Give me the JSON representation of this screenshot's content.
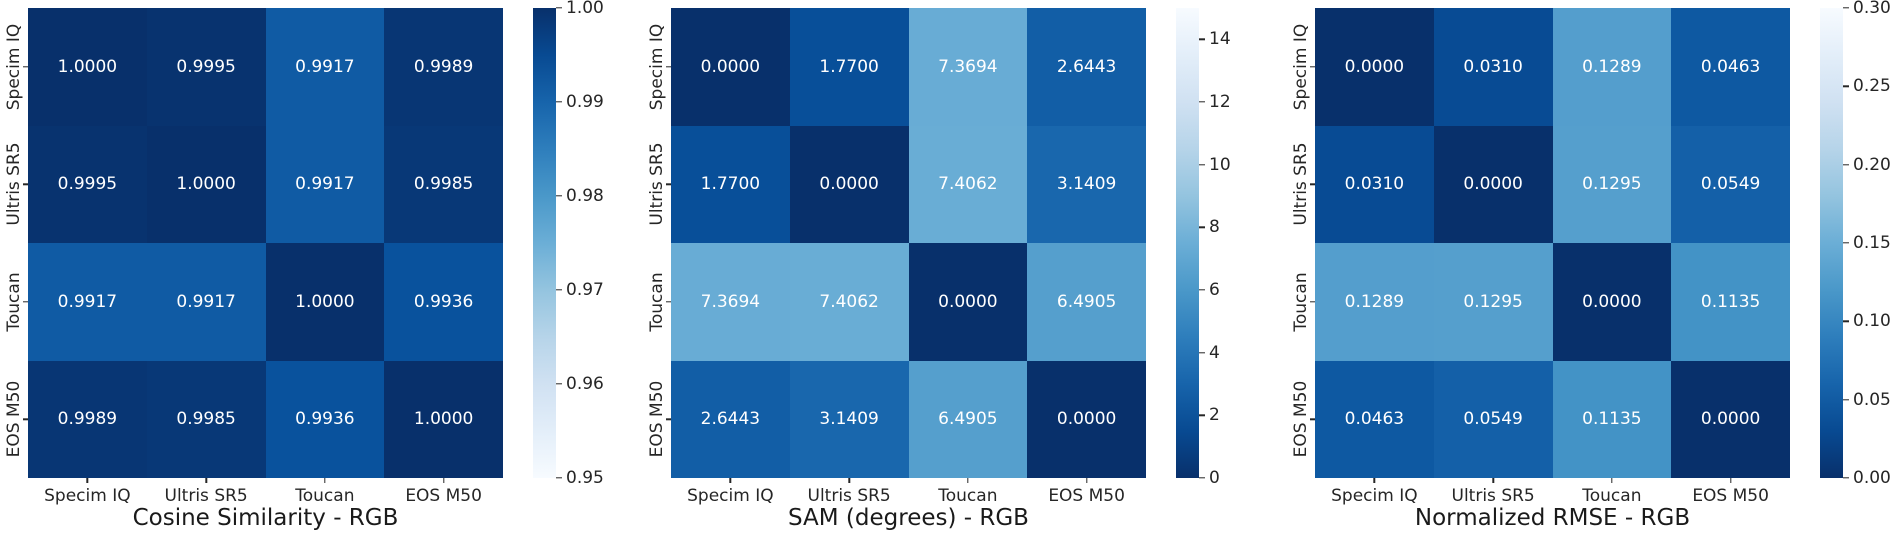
{
  "figure": {
    "background": "#ffffff",
    "annotation_text_color": "#ffffff",
    "axis_text_color": "#262626",
    "title_text_color": "#1a1a1a",
    "colormap_name": "Blues",
    "colormap_dark_end": "#08306b",
    "colormap_light_end": "#f7fbff"
  },
  "chart_data": [
    {
      "type": "heatmap",
      "title": "Cosine Similarity - RGB",
      "x_tick_labels": [
        "Specim IQ",
        "Ultris SR5",
        "Toucan",
        "EOS M50"
      ],
      "y_tick_labels": [
        "Specim IQ",
        "Ultris SR5",
        "Toucan",
        "EOS M50"
      ],
      "values": [
        [
          1.0,
          0.9995,
          0.9917,
          0.9989
        ],
        [
          0.9995,
          1.0,
          0.9917,
          0.9985
        ],
        [
          0.9917,
          0.9917,
          1.0,
          0.9936
        ],
        [
          0.9989,
          0.9985,
          0.9936,
          1.0
        ]
      ],
      "value_decimals": 4,
      "colormap": "Blues",
      "colormap_reversed": false,
      "vmin": 0.95,
      "vmax": 1.0,
      "colorbar_position": "right",
      "colorbar_tick_values": [
        1.0,
        0.99,
        0.98,
        0.97,
        0.96,
        0.95
      ],
      "colorbar_tick_labels": [
        "1.00",
        "0.99",
        "0.98",
        "0.97",
        "0.96",
        "0.95"
      ],
      "grid": false
    },
    {
      "type": "heatmap",
      "title": "SAM (degrees) - RGB",
      "x_tick_labels": [
        "Specim IQ",
        "Ultris SR5",
        "Toucan",
        "EOS M50"
      ],
      "y_tick_labels": [
        "Specim IQ",
        "Ultris SR5",
        "Toucan",
        "EOS M50"
      ],
      "values": [
        [
          0.0,
          1.77,
          7.3694,
          2.6443
        ],
        [
          1.77,
          0.0,
          7.4062,
          3.1409
        ],
        [
          7.3694,
          7.4062,
          0.0,
          6.4905
        ],
        [
          2.6443,
          3.1409,
          6.4905,
          0.0
        ]
      ],
      "value_decimals": 4,
      "colormap": "Blues",
      "colormap_reversed": true,
      "vmin": 0,
      "vmax": 15,
      "colorbar_position": "right",
      "colorbar_tick_values": [
        14,
        12,
        10,
        8,
        6,
        4,
        2,
        0
      ],
      "colorbar_tick_labels": [
        "14",
        "12",
        "10",
        "8",
        "6",
        "4",
        "2",
        "0"
      ],
      "grid": false
    },
    {
      "type": "heatmap",
      "title": "Normalized RMSE - RGB",
      "x_tick_labels": [
        "Specim IQ",
        "Ultris SR5",
        "Toucan",
        "EOS M50"
      ],
      "y_tick_labels": [
        "Specim IQ",
        "Ultris SR5",
        "Toucan",
        "EOS M50"
      ],
      "values": [
        [
          0.0,
          0.031,
          0.1289,
          0.0463
        ],
        [
          0.031,
          0.0,
          0.1295,
          0.0549
        ],
        [
          0.1289,
          0.1295,
          0.0,
          0.1135
        ],
        [
          0.0463,
          0.0549,
          0.1135,
          0.0
        ]
      ],
      "value_decimals": 4,
      "colormap": "Blues",
      "colormap_reversed": true,
      "vmin": 0.0,
      "vmax": 0.3,
      "colorbar_position": "right",
      "colorbar_tick_values": [
        0.3,
        0.25,
        0.2,
        0.15,
        0.1,
        0.05,
        0.0
      ],
      "colorbar_tick_labels": [
        "0.30",
        "0.25",
        "0.20",
        "0.15",
        "0.10",
        "0.05",
        "0.00"
      ],
      "grid": false
    }
  ]
}
